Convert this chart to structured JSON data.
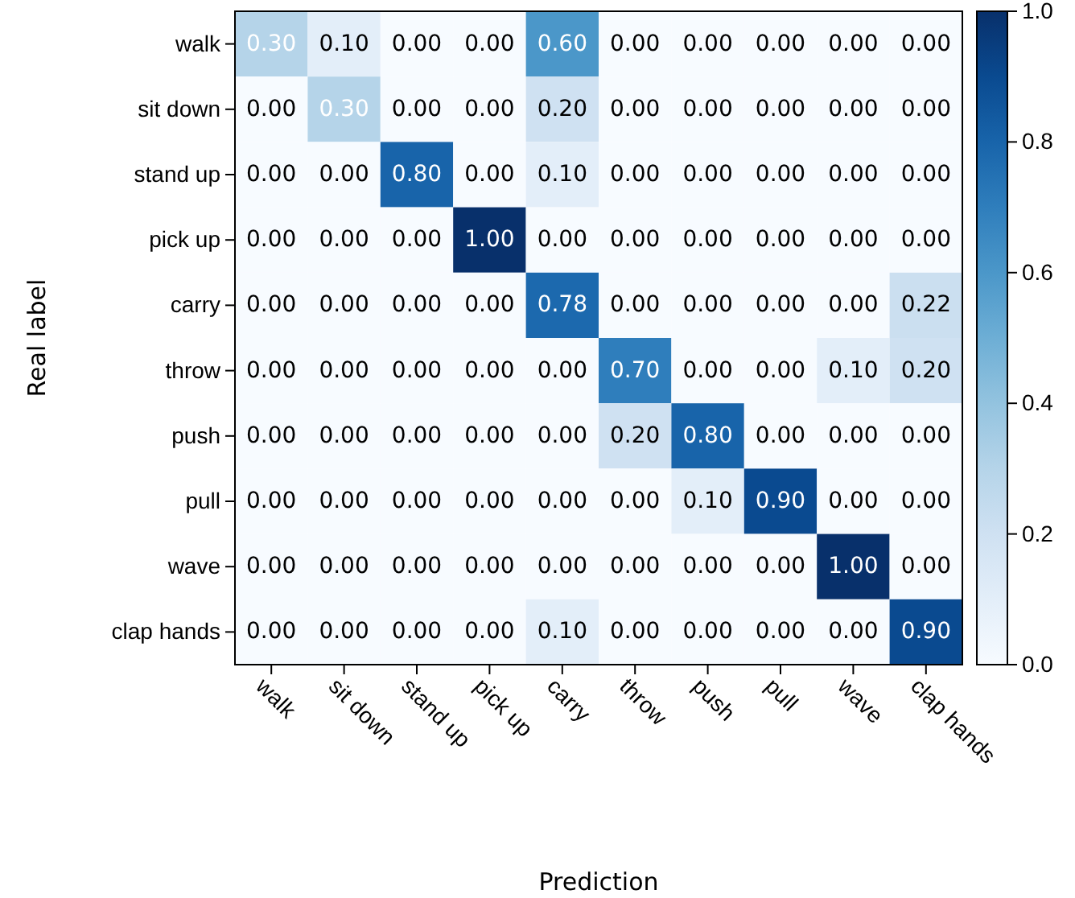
{
  "chart_data": {
    "type": "heatmap",
    "xlabel": "Prediction",
    "ylabel": "Real label",
    "categories": [
      "walk",
      "sit down",
      "stand up",
      "pick up",
      "carry",
      "throw",
      "push",
      "pull",
      "wave",
      "clap hands"
    ],
    "y_categories": [
      "walk",
      "sit down",
      "stand up",
      "pick up",
      "carry",
      "throw",
      "push",
      "pull",
      "wave",
      "clap hands"
    ],
    "cells": [
      [
        0.3,
        0.1,
        0,
        0,
        0.6,
        0,
        0,
        0,
        0,
        0
      ],
      [
        0,
        0.3,
        0,
        0,
        0.2,
        0,
        0,
        0,
        0,
        0
      ],
      [
        0,
        0,
        0.8,
        0,
        0.1,
        0,
        0,
        0,
        0,
        0
      ],
      [
        0,
        0,
        0,
        1,
        0,
        0,
        0,
        0,
        0,
        0
      ],
      [
        0,
        0,
        0,
        0,
        0.78,
        0,
        0,
        0,
        0,
        0.22
      ],
      [
        0,
        0,
        0,
        0,
        0,
        0.7,
        0,
        0,
        0.1,
        0.2
      ],
      [
        0,
        0,
        0,
        0,
        0,
        0.2,
        0.8,
        0,
        0,
        0
      ],
      [
        0,
        0,
        0,
        0,
        0,
        0,
        0.1,
        0.9,
        0,
        0
      ],
      [
        0,
        0,
        0,
        0,
        0,
        0,
        0,
        0,
        1,
        0
      ],
      [
        0,
        0,
        0,
        0,
        0.1,
        0,
        0,
        0,
        0,
        0.9
      ]
    ],
    "data_labels": true,
    "cell_labels": [
      [
        "0.30",
        "0.10",
        "0.00",
        "0.00",
        "0.60",
        "0.00",
        "0.00",
        "0.00",
        "0.00",
        "0.00"
      ],
      [
        "0.00",
        "0.30",
        "0.00",
        "0.00",
        "0.20",
        "0.00",
        "0.00",
        "0.00",
        "0.00",
        "0.00"
      ],
      [
        "0.00",
        "0.00",
        "0.80",
        "0.00",
        "0.10",
        "0.00",
        "0.00",
        "0.00",
        "0.00",
        "0.00"
      ],
      [
        "0.00",
        "0.00",
        "0.00",
        "1.00",
        "0.00",
        "0.00",
        "0.00",
        "0.00",
        "0.00",
        "0.00"
      ],
      [
        "0.00",
        "0.00",
        "0.00",
        "0.00",
        "0.78",
        "0.00",
        "0.00",
        "0.00",
        "0.00",
        "0.22"
      ],
      [
        "0.00",
        "0.00",
        "0.00",
        "0.00",
        "0.00",
        "0.70",
        "0.00",
        "0.00",
        "0.10",
        "0.20"
      ],
      [
        "0.00",
        "0.00",
        "0.00",
        "0.00",
        "0.00",
        "0.20",
        "0.80",
        "0.00",
        "0.00",
        "0.00"
      ],
      [
        "0.00",
        "0.00",
        "0.00",
        "0.00",
        "0.00",
        "0.00",
        "0.10",
        "0.90",
        "0.00",
        "0.00"
      ],
      [
        "0.00",
        "0.00",
        "0.00",
        "0.00",
        "0.00",
        "0.00",
        "0.00",
        "0.00",
        "1.00",
        "0.00"
      ],
      [
        "0.00",
        "0.00",
        "0.00",
        "0.00",
        "0.10",
        "0.00",
        "0.00",
        "0.00",
        "0.00",
        "0.90"
      ]
    ],
    "clim": [
      0,
      1
    ],
    "cticks": [
      {
        "value": 0,
        "label": "0.0"
      },
      {
        "value": 0.2,
        "label": "0.2"
      },
      {
        "value": 0.4,
        "label": "0.4"
      },
      {
        "value": 0.6,
        "label": "0.6"
      },
      {
        "value": 0.8,
        "label": "0.8"
      },
      {
        "value": 1,
        "label": "1.0"
      }
    ]
  }
}
